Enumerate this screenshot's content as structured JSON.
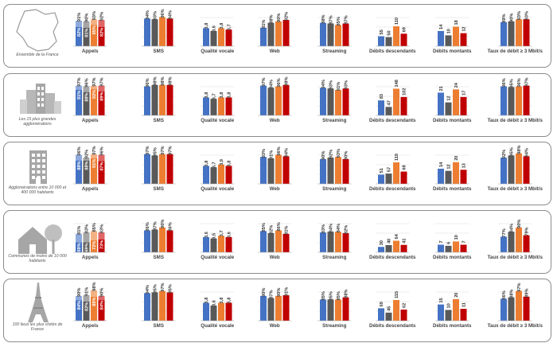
{
  "colors": {
    "blue": "#4472c4",
    "blue_light": "#8faadc",
    "gray": "#595959",
    "gray_light": "#a6a6a6",
    "orange": "#ed7d31",
    "orange_light": "#f4b183",
    "red": "#c00000",
    "red_light": "#e06666"
  },
  "chart_data": {
    "type": "bar",
    "stacked_metrics": [
      "Appels"
    ],
    "metrics": [
      "Appels",
      "SMS",
      "Qualité vocale",
      "Web",
      "Streaming",
      "Débits descendants",
      "Débits montants",
      "Taux de débit ≥ 3 Mbit/s"
    ],
    "series_colors": [
      "blue",
      "gray",
      "orange",
      "red"
    ],
    "regions": [
      {
        "label": "Ensemble de la France",
        "icon": "france-map-icon",
        "data": {
          "Appels": {
            "upper": [
              "91%",
              "90%",
              "93%",
              "92%"
            ],
            "lower": [
              "82%",
              "81%",
              "85%",
              "82%"
            ]
          },
          "SMS": [
            "94%",
            "93%",
            "96%",
            "94%"
          ],
          "Qualité vocale": [
            "3,8",
            "3,6",
            "3,8",
            "3,7"
          ],
          "Web": [
            "81%",
            "88%",
            "90%",
            "92%"
          ],
          "Web_top": [
            "94%",
            "94%",
            "96%",
            "94%"
          ],
          "Streaming": [
            "88%",
            "87%",
            "85%",
            "87%"
          ],
          "Streaming_top": [
            "91%",
            "93%",
            "95%",
            "90%"
          ],
          "Débits descendants": [
            55,
            50,
            110,
            69
          ],
          "Débits montants": [
            14,
            10,
            18,
            12
          ],
          "Taux de débit ≥ 3 Mbit/s": [
            "89%",
            "90%",
            "93%",
            "93%"
          ]
        }
      },
      {
        "label": "Les 15 plus grandes agglomérations",
        "icon": "city-buildings-icon",
        "data": {
          "Appels": {
            "upper": [
              "97%",
              "96%",
              "97%",
              "97%"
            ],
            "lower": [
              "91%",
              "88%",
              "92%",
              "89%"
            ]
          },
          "SMS": [
            "96%",
            "98%",
            "98%",
            "98%"
          ],
          "Qualité vocale": [
            "3,8",
            "3,7",
            "3,8",
            "3,8"
          ],
          "Web": [
            "97%",
            "94%",
            "96%",
            "98%"
          ],
          "Web_top": [
            "99%",
            "97%",
            "98%",
            "98%"
          ],
          "Streaming": [
            "94%",
            "93%",
            "91%",
            "93%"
          ],
          "Streaming_top": [
            "96%",
            "95%",
            "94%",
            "95%"
          ],
          "Débits descendants": [
            83,
            47,
            148,
            102
          ],
          "Débits montants": [
            21,
            12,
            24,
            17
          ],
          "Taux de débit ≥ 3 Mbit/s": [
            "96%",
            "95%",
            "96%",
            "97%"
          ]
        }
      },
      {
        "label": "Agglomérations entre 10 000 et 400 000 habitants",
        "icon": "building-icon",
        "data": {
          "Appels": {
            "upper": [
              "96%",
              "92%",
              "97%",
              "96%"
            ],
            "lower": [
              "88%",
              "88%",
              "91%",
              "87%"
            ]
          },
          "SMS": [
            "97%",
            "95%",
            "97%",
            "97%"
          ],
          "Qualité vocale": [
            "3,8",
            "3,7",
            "3,9",
            "3,8"
          ],
          "Web": [
            "93%",
            "91%",
            "96%",
            "94%"
          ],
          "Web_top": [
            "98%",
            "96%",
            "98%",
            "97%"
          ],
          "Streaming": [
            "90%",
            "92%",
            "93%",
            "90%"
          ],
          "Streaming_top": [
            "92%",
            "92%",
            "98%",
            "93%"
          ],
          "Débits descendants": [
            51,
            57,
            119,
            68
          ],
          "Débits montants": [
            14,
            12,
            20,
            13
          ],
          "Taux de débit ≥ 3 Mbit/s": [
            "92%",
            "95%",
            "98%",
            "94%"
          ]
        }
      },
      {
        "label": "Communes de moins de 10 000 habitants",
        "icon": "house-tree-icon",
        "data": {
          "Appels": {
            "upper": [
              "81%",
              "83%",
              "85%",
              "83%"
            ],
            "lower": [
              "69%",
              "69%",
              "72%",
              "73%"
            ]
          },
          "SMS": [
            "86%",
            "87%",
            "90%",
            "86%"
          ],
          "Qualité vocale": [
            "3,6",
            "3,5",
            "3,7",
            "3,6"
          ],
          "Web": [
            "85%",
            "82%",
            "86%",
            "81%"
          ],
          "Web_top": [
            "87%",
            "86%",
            "89%",
            "87%"
          ],
          "Streaming": [
            "83%",
            "84%",
            "84%",
            "82%"
          ],
          "Streaming_top": [
            "87%",
            "86%",
            "85%",
            "88%"
          ],
          "Débits descendants": [
            30,
            40,
            64,
            41
          ],
          "Débits montants": [
            7,
            6,
            10,
            7
          ],
          "Taux de débit ≥ 3 Mbit/s": [
            "77%",
            "84%",
            "90%",
            "79%"
          ]
        }
      },
      {
        "label": "100 lieux les plus visités de France",
        "icon": "eiffel-tower-icon",
        "data": {
          "Appels": {
            "upper": [
              "90%",
              "91%",
              "98%",
              "90%"
            ],
            "lower": [
              "84%",
              "82%",
              "89%",
              "84%"
            ]
          },
          "SMS": [
            "94%",
            "95%",
            "97%",
            "95%"
          ],
          "Qualité vocale": [
            "3,8",
            "3,6",
            "3,8",
            "3,8"
          ],
          "Web": [
            "90%",
            "87%",
            "90%",
            "91%"
          ],
          "Web_top": [
            "92%",
            "92%",
            "96%",
            "93%"
          ],
          "Streaming": [
            "85%",
            "85%",
            "85%",
            "88%"
          ],
          "Streaming_top": [
            "89%",
            "85%",
            "89%",
            "89%"
          ],
          "Débits descendants": [
            69,
            45,
            115,
            62
          ],
          "Débits montants": [
            15,
            10,
            20,
            11
          ],
          "Taux de débit ≥ 3 Mbit/s": [
            "86%",
            "88%",
            "97%",
            "89%"
          ]
        }
      }
    ]
  }
}
